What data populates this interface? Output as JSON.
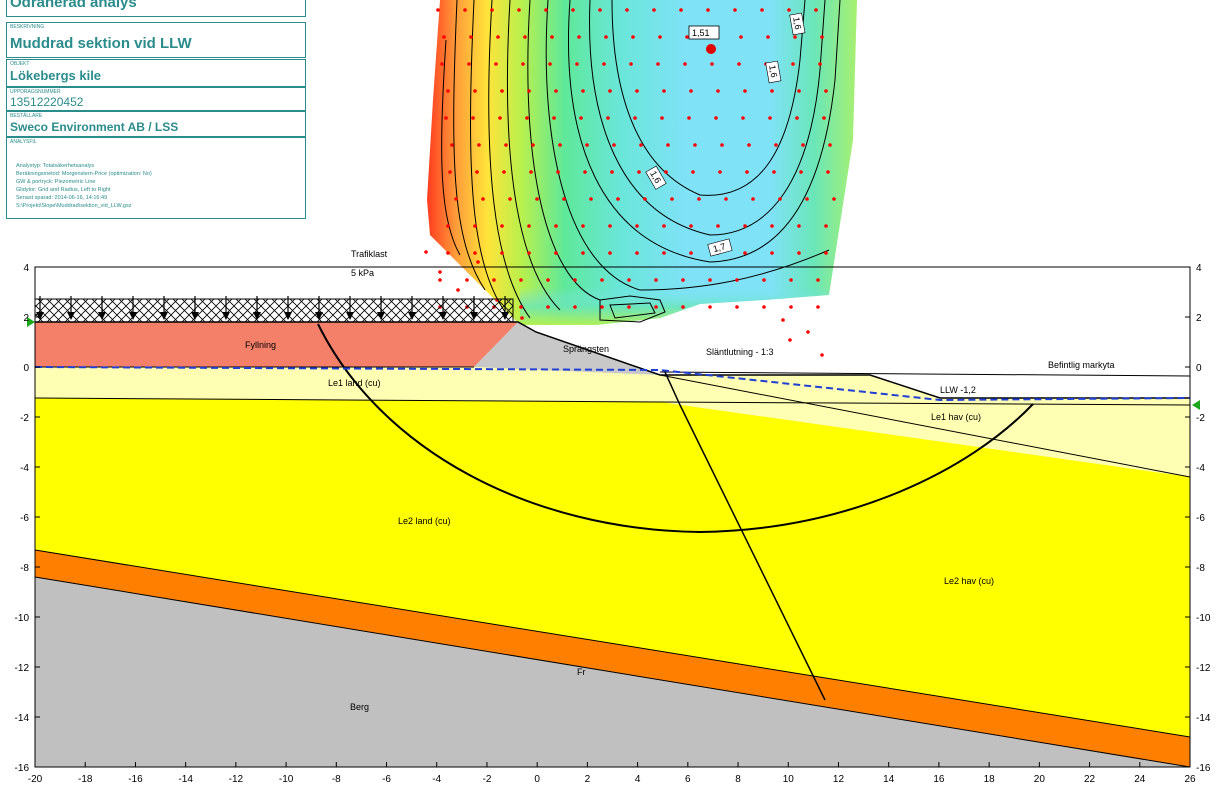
{
  "titleblock": {
    "analysis_type": "Odränerad analys",
    "rows": [
      {
        "caption": "BESKRIVNING",
        "value": "Muddrad sektion vid LLW"
      },
      {
        "caption": "OBJEKT",
        "value": "Lökebergs kile"
      },
      {
        "caption": "UPPDRAGSNUMMER",
        "value": "13512220452"
      },
      {
        "caption": "BESTÄLLARE",
        "value": "Sweco Environment AB / LSS"
      },
      {
        "caption": "ANALYSFIL",
        "value": ""
      }
    ],
    "info_lines": [
      "Analystyp:    Totalsäkerhetsanalys",
      "Beräkningsmetod:    Morgenstern-Price (optimization: No)",
      "GW & portryck:    Piezometric Line",
      "Glidytor:    Grid and Radius, Left to Right",
      "Senast sparad:    2014-06-16,  14:16:49",
      "S:\\Projekt\\Slope\\Muddrad\\sektion_vid_LLW.gsz"
    ]
  },
  "labels": {
    "load_title": "Trafiklast",
    "load_value": "5 kPa",
    "slope_note": "Släntlutning - 1:3",
    "existing_ground": "Befintlig markyta",
    "llw": "LLW -1,2",
    "fs_min": "1,51"
  },
  "materials": [
    {
      "id": "fyllning",
      "name": "Fyllning",
      "color": "#f4806a"
    },
    {
      "id": "sprangsten",
      "name": "Sprängsten",
      "color": "#c8c8c8"
    },
    {
      "id": "le1_land",
      "name": "Le1 land (cu)",
      "color": "#ffffb3"
    },
    {
      "id": "le1_hav",
      "name": "Le1 hav (cu)",
      "color": "#ffffb3"
    },
    {
      "id": "le2_land",
      "name": "Le2 land (cu)",
      "color": "#ffff00"
    },
    {
      "id": "le2_hav",
      "name": "Le2 hav (cu)",
      "color": "#ffff00"
    },
    {
      "id": "fr",
      "name": "Fr",
      "color": "#ff8000"
    },
    {
      "id": "berg",
      "name": "Berg",
      "color": "#c0c0c0"
    }
  ],
  "contour_labels": [
    "1,6",
    "1,6",
    "1,6",
    "1,7"
  ],
  "axes": {
    "x_range": [
      -20,
      26
    ],
    "y_range": [
      -16,
      4
    ],
    "x_ticks": [
      -20,
      -18,
      -16,
      -14,
      -12,
      -10,
      -8,
      -6,
      -4,
      -2,
      0,
      2,
      4,
      6,
      8,
      10,
      12,
      14,
      16,
      18,
      20,
      22,
      24,
      26
    ],
    "y_ticks": [
      4,
      2,
      0,
      -2,
      -4,
      -6,
      -8,
      -10,
      -12,
      -14,
      -16
    ]
  },
  "colors": {
    "accent": "#2b8c8c",
    "water_line": "#1f3fd6",
    "grid_dot": "#ff0000",
    "fs_center": "#e00000"
  }
}
